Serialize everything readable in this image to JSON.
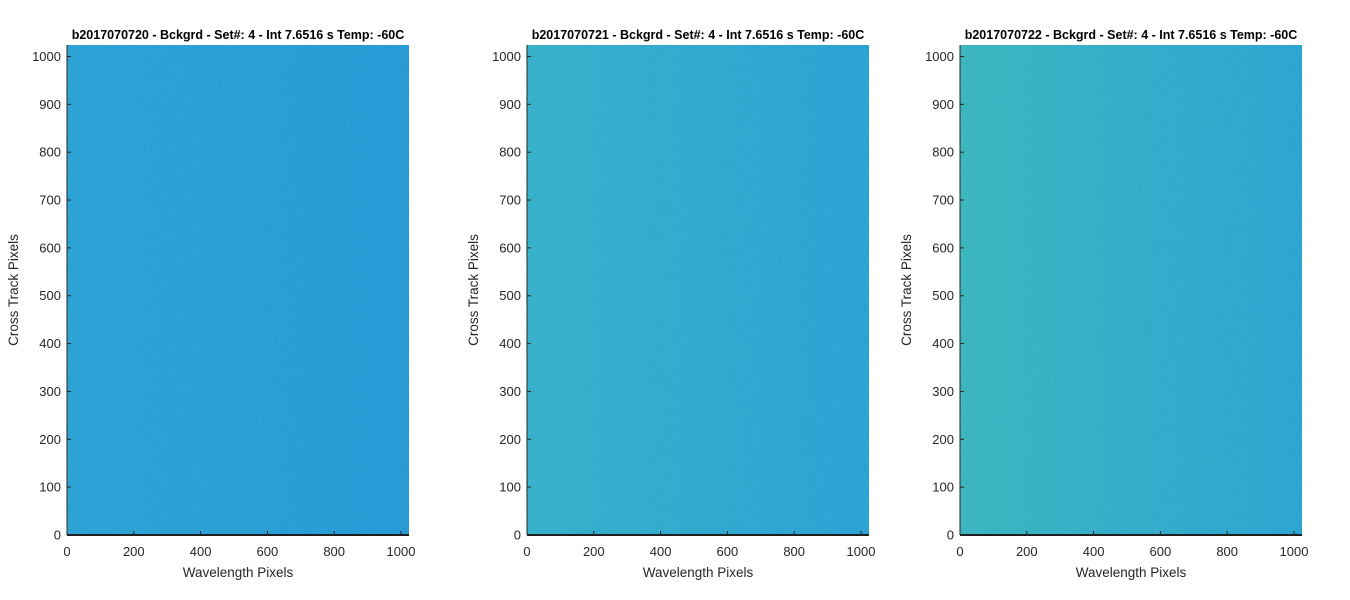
{
  "chart_data": [
    {
      "type": "heatmap",
      "title": "b2017070720 - Bckgrd - Set#: 4 - Int 7.6516 s Temp: -60C",
      "xlabel": "Wavelength Pixels",
      "ylabel": "Cross Track Pixels",
      "xlim": [
        0,
        1024
      ],
      "ylim": [
        0,
        1024
      ],
      "xticks": [
        0,
        200,
        400,
        600,
        800,
        1000
      ],
      "yticks": [
        0,
        100,
        200,
        300,
        400,
        500,
        600,
        700,
        800,
        900,
        1000
      ],
      "grid": false,
      "colors": {
        "left": "#1398d0",
        "right": "#0d8ed1",
        "noise": "#26a3d6"
      }
    },
    {
      "type": "heatmap",
      "title": "b2017070721 - Bckgrd - Set#: 4 - Int 7.6516 s Temp: -60C",
      "xlabel": "Wavelength Pixels",
      "ylabel": "Cross Track Pixels",
      "xlim": [
        0,
        1024
      ],
      "ylim": [
        0,
        1024
      ],
      "xticks": [
        0,
        200,
        400,
        600,
        800,
        1000
      ],
      "yticks": [
        0,
        100,
        200,
        300,
        400,
        500,
        600,
        700,
        800,
        900,
        1000
      ],
      "grid": false,
      "colors": {
        "left": "#1fa8c4",
        "right": "#1197cf",
        "noise": "#35b2c8"
      }
    },
    {
      "type": "heatmap",
      "title": "b2017070722 - Bckgrd - Set#: 4 - Int 7.6516 s Temp: -60C",
      "xlabel": "Wavelength Pixels",
      "ylabel": "Cross Track Pixels",
      "xlim": [
        0,
        1024
      ],
      "ylim": [
        0,
        1024
      ],
      "xticks": [
        0,
        200,
        400,
        600,
        800,
        1000
      ],
      "yticks": [
        0,
        100,
        200,
        300,
        400,
        500,
        600,
        700,
        800,
        900,
        1000
      ],
      "grid": false,
      "colors": {
        "left": "#24adb8",
        "right": "#139acd",
        "noise": "#3ab7bd"
      }
    }
  ]
}
